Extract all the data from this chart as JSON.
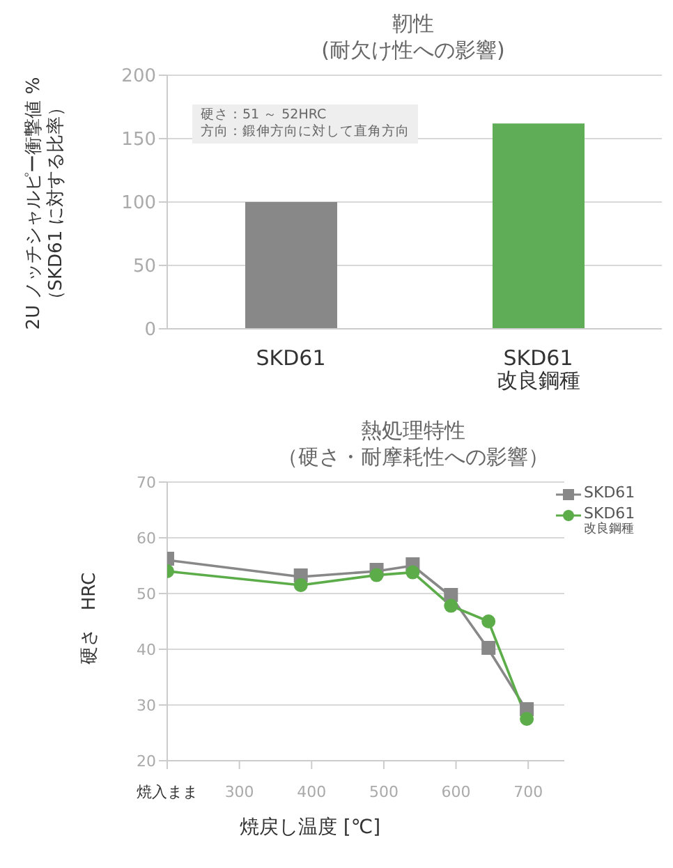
{
  "chart_data": [
    {
      "type": "bar",
      "title": "靭性",
      "subtitle": "(耐欠け性への影響)",
      "ylabel": "2U ノッチシャルピー衝撃値 %\n（SKD61 に対する比率）",
      "categories": [
        "SKD61",
        "SKD61\n改良鋼種"
      ],
      "values": [
        100,
        162
      ],
      "colors": [
        "#888888",
        "#5fad56"
      ],
      "ylim": [
        0,
        200
      ],
      "yticks": [
        0,
        50,
        100,
        150,
        200
      ],
      "grid": "y",
      "annotations": [
        "硬さ：51 ～ 52HRC",
        "方向：鍛伸方向に対して直角方向"
      ]
    },
    {
      "type": "line",
      "title": "熱処理特性",
      "subtitle": "（硬さ・耐摩耗性への影響）",
      "xlabel": "焼戻し温度 [℃]",
      "ylabel": "硬さ　HRC",
      "x": [
        200,
        385,
        490,
        540,
        593,
        645,
        698
      ],
      "series": [
        {
          "name": "SKD61",
          "color": "#888888",
          "marker": "square",
          "values": [
            56,
            53,
            54,
            55,
            49.5,
            40,
            29
          ]
        },
        {
          "name": "SKD61\n改良鋼種",
          "color": "#5cad4a",
          "marker": "circle",
          "values": [
            54,
            51.5,
            53.3,
            53.8,
            47.8,
            45,
            27.5
          ]
        }
      ],
      "xlim": [
        200,
        750
      ],
      "xticks": [
        {
          "value": 200,
          "label": "焼入まま"
        },
        300,
        400,
        500,
        600,
        700
      ],
      "ylim": [
        20,
        70
      ],
      "yticks": [
        20,
        30,
        40,
        50,
        60,
        70
      ],
      "grid": "y",
      "legend": "top right",
      "line_style": "solid"
    }
  ]
}
